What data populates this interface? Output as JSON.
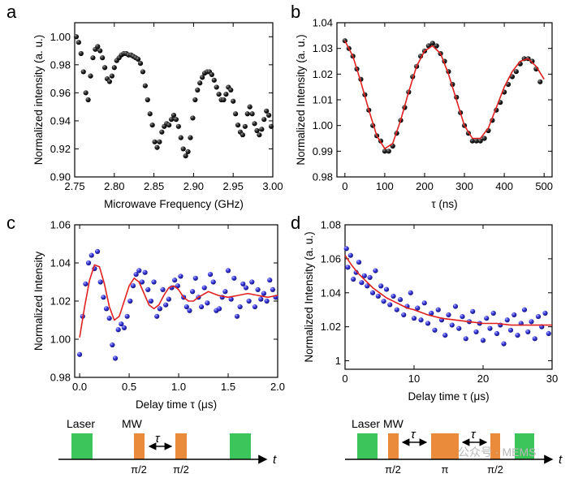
{
  "figure": {
    "watermark": "公众号 · MEMS",
    "panels": [
      "a",
      "b",
      "c",
      "d"
    ]
  },
  "colors": {
    "black_dot": "#1a1a1a",
    "blue_dot": "#2a2ad8",
    "fit": "#e02020",
    "laser": "#3cc55a",
    "mw": "#e98b3a"
  },
  "chart_data": [
    {
      "type": "scatter",
      "panel": "a",
      "title": "",
      "xlabel": "Microwave Frequency (GHz)",
      "ylabel": "Normalized intensity (a. u.)",
      "xlim": [
        2.75,
        3.0
      ],
      "ylim": [
        0.9,
        1.01
      ],
      "xticks": [
        "2.75",
        "2.80",
        "2.85",
        "2.90",
        "2.95",
        "3.00"
      ],
      "xtick_values": [
        2.75,
        2.8,
        2.85,
        2.9,
        2.95,
        3.0
      ],
      "yticks": [
        "0.90",
        "0.92",
        "0.94",
        "0.96",
        "0.98",
        "1.00"
      ],
      "ytick_values": [
        0.9,
        0.92,
        0.94,
        0.96,
        0.98,
        1.0
      ],
      "series": [
        {
          "name": "data",
          "marker": "black",
          "x": [
            2.752,
            2.755,
            2.758,
            2.761,
            2.764,
            2.767,
            2.77,
            2.773,
            2.776,
            2.779,
            2.782,
            2.785,
            2.788,
            2.791,
            2.794,
            2.797,
            2.8,
            2.803,
            2.806,
            2.809,
            2.812,
            2.815,
            2.818,
            2.821,
            2.824,
            2.827,
            2.83,
            2.833,
            2.836,
            2.839,
            2.842,
            2.845,
            2.848,
            2.851,
            2.854,
            2.857,
            2.86,
            2.863,
            2.866,
            2.869,
            2.872,
            2.875,
            2.878,
            2.881,
            2.884,
            2.887,
            2.89,
            2.893,
            2.896,
            2.899,
            2.902,
            2.905,
            2.908,
            2.911,
            2.914,
            2.917,
            2.92,
            2.923,
            2.926,
            2.929,
            2.932,
            2.935,
            2.938,
            2.941,
            2.944,
            2.947,
            2.95,
            2.953,
            2.956,
            2.959,
            2.962,
            2.965,
            2.968,
            2.971,
            2.974,
            2.977,
            2.98,
            2.983,
            2.986,
            2.989,
            2.992,
            2.995,
            2.998
          ],
          "y": [
            1.0,
            0.996,
            0.988,
            0.975,
            0.96,
            0.955,
            0.972,
            0.985,
            0.991,
            0.993,
            0.99,
            0.985,
            0.978,
            0.97,
            0.968,
            0.972,
            0.978,
            0.983,
            0.985,
            0.987,
            0.988,
            0.988,
            0.987,
            0.987,
            0.986,
            0.985,
            0.984,
            0.981,
            0.975,
            0.965,
            0.955,
            0.945,
            0.937,
            0.925,
            0.921,
            0.925,
            0.932,
            0.936,
            0.938,
            0.937,
            0.941,
            0.944,
            0.941,
            0.936,
            0.928,
            0.92,
            0.915,
            0.918,
            0.928,
            0.942,
            0.955,
            0.962,
            0.967,
            0.971,
            0.974,
            0.975,
            0.975,
            0.973,
            0.969,
            0.964,
            0.959,
            0.955,
            0.955,
            0.959,
            0.964,
            0.962,
            0.954,
            0.945,
            0.937,
            0.932,
            0.93,
            0.936,
            0.945,
            0.95,
            0.945,
            0.938,
            0.933,
            0.93,
            0.934,
            0.941,
            0.947,
            0.944,
            0.936
          ]
        }
      ]
    },
    {
      "type": "scatter",
      "panel": "b",
      "title": "",
      "xlabel": "τ (ns)",
      "ylabel": "Normalized Intensity (a. u.)",
      "xlim": [
        -20,
        520
      ],
      "ylim": [
        0.98,
        1.04
      ],
      "xticks": [
        "0",
        "100",
        "200",
        "300",
        "400",
        "500"
      ],
      "xtick_values": [
        0,
        100,
        200,
        300,
        400,
        500
      ],
      "yticks": [
        "0.98",
        "0.99",
        "1.00",
        "1.01",
        "1.02",
        "1.03",
        "1.04"
      ],
      "ytick_values": [
        0.98,
        0.99,
        1.0,
        1.01,
        1.02,
        1.03,
        1.04
      ],
      "series": [
        {
          "name": "data",
          "marker": "black",
          "x": [
            0,
            10,
            20,
            30,
            40,
            50,
            60,
            70,
            80,
            90,
            100,
            110,
            120,
            130,
            140,
            150,
            160,
            170,
            180,
            190,
            200,
            210,
            220,
            230,
            240,
            250,
            260,
            270,
            280,
            290,
            300,
            310,
            320,
            330,
            340,
            350,
            360,
            370,
            380,
            390,
            400,
            410,
            420,
            430,
            440,
            450,
            460,
            470,
            480,
            490
          ],
          "y": [
            1.033,
            1.03,
            1.027,
            1.022,
            1.018,
            1.012,
            1.006,
            1.0,
            0.996,
            0.994,
            0.99,
            0.99,
            0.992,
            0.997,
            1.002,
            1.007,
            1.013,
            1.019,
            1.023,
            1.027,
            1.029,
            1.031,
            1.032,
            1.031,
            1.028,
            1.025,
            1.021,
            1.016,
            1.011,
            1.005,
            1.0,
            0.997,
            0.994,
            0.994,
            0.994,
            0.995,
            0.998,
            1.002,
            1.006,
            1.009,
            1.013,
            1.016,
            1.019,
            1.021,
            1.024,
            1.026,
            1.026,
            1.025,
            1.022,
            1.017
          ]
        },
        {
          "name": "fit",
          "line": "red",
          "x": [
            0,
            20,
            40,
            60,
            80,
            100,
            120,
            140,
            160,
            180,
            200,
            220,
            240,
            260,
            280,
            300,
            320,
            340,
            360,
            380,
            400,
            420,
            440,
            460,
            480,
            500
          ],
          "y": [
            1.033,
            1.027,
            1.017,
            1.006,
            0.996,
            0.991,
            0.993,
            1.002,
            1.013,
            1.023,
            1.029,
            1.031,
            1.028,
            1.02,
            1.01,
            1.0,
            0.995,
            0.995,
            0.999,
            1.007,
            1.015,
            1.021,
            1.025,
            1.026,
            1.023,
            1.018
          ]
        }
      ]
    },
    {
      "type": "scatter",
      "panel": "c",
      "title": "",
      "xlabel": "Delay time τ (μs)",
      "ylabel": "Normalized Intensity",
      "xlim": [
        -0.05,
        2.0
      ],
      "ylim": [
        0.98,
        1.06
      ],
      "xticks": [
        "0.0",
        "0.5",
        "1.0",
        "1.5",
        "2.0"
      ],
      "xtick_values": [
        0.0,
        0.5,
        1.0,
        1.5,
        2.0
      ],
      "yticks": [
        "0.98",
        "1.00",
        "1.02",
        "1.04",
        "1.06"
      ],
      "ytick_values": [
        0.98,
        1.0,
        1.02,
        1.04,
        1.06
      ],
      "series": [
        {
          "name": "data",
          "marker": "blue",
          "x": [
            0.0,
            0.03,
            0.06,
            0.09,
            0.12,
            0.15,
            0.18,
            0.21,
            0.24,
            0.27,
            0.3,
            0.33,
            0.36,
            0.39,
            0.42,
            0.45,
            0.48,
            0.51,
            0.54,
            0.57,
            0.6,
            0.63,
            0.66,
            0.69,
            0.72,
            0.75,
            0.78,
            0.81,
            0.84,
            0.87,
            0.9,
            0.93,
            0.96,
            0.99,
            1.02,
            1.05,
            1.08,
            1.11,
            1.14,
            1.17,
            1.2,
            1.23,
            1.26,
            1.29,
            1.32,
            1.35,
            1.38,
            1.41,
            1.44,
            1.47,
            1.5,
            1.53,
            1.56,
            1.59,
            1.62,
            1.65,
            1.68,
            1.71,
            1.74,
            1.77,
            1.8,
            1.83,
            1.86,
            1.89,
            1.92,
            1.95,
            1.98
          ],
          "y": [
            0.992,
            1.012,
            1.029,
            1.04,
            1.044,
            1.037,
            1.046,
            1.03,
            1.022,
            1.016,
            1.011,
            0.997,
            0.99,
            1.005,
            1.008,
            1.006,
            1.012,
            1.02,
            1.028,
            1.034,
            1.036,
            1.03,
            1.035,
            1.026,
            1.02,
            1.03,
            1.012,
            1.016,
            1.026,
            1.018,
            1.021,
            1.027,
            1.031,
            1.028,
            1.033,
            1.022,
            1.017,
            1.015,
            1.025,
            1.032,
            1.022,
            1.017,
            1.027,
            1.019,
            1.034,
            1.03,
            1.015,
            1.016,
            1.022,
            1.025,
            1.036,
            1.021,
            1.032,
            1.012,
            1.017,
            1.029,
            1.027,
            1.02,
            1.03,
            1.017,
            1.026,
            1.021,
            1.024,
            1.02,
            1.031,
            1.026,
            1.022
          ]
        },
        {
          "name": "fit",
          "line": "red",
          "x": [
            0.0,
            0.05,
            0.1,
            0.15,
            0.2,
            0.25,
            0.3,
            0.35,
            0.4,
            0.45,
            0.5,
            0.55,
            0.6,
            0.65,
            0.7,
            0.75,
            0.8,
            0.85,
            0.9,
            0.95,
            1.0,
            1.05,
            1.1,
            1.15,
            1.2,
            1.3,
            1.4,
            1.5,
            1.6,
            1.7,
            1.8,
            1.9,
            2.0
          ],
          "y": [
            1.001,
            1.017,
            1.031,
            1.039,
            1.038,
            1.029,
            1.017,
            1.01,
            1.012,
            1.02,
            1.028,
            1.032,
            1.03,
            1.024,
            1.018,
            1.016,
            1.018,
            1.023,
            1.027,
            1.028,
            1.026,
            1.022,
            1.02,
            1.02,
            1.022,
            1.025,
            1.023,
            1.022,
            1.023,
            1.024,
            1.023,
            1.022,
            1.023
          ]
        }
      ]
    },
    {
      "type": "scatter",
      "panel": "d",
      "title": "",
      "xlabel": "Delay time τ (μs)",
      "ylabel": "Normalized Intensity (a. u.)",
      "xlim": [
        0,
        30
      ],
      "ylim": [
        0.995,
        1.08
      ],
      "xticks": [
        "0",
        "10",
        "20",
        "30"
      ],
      "xtick_values": [
        0,
        10,
        20,
        30
      ],
      "yticks": [
        "1",
        "1.02",
        "1.04",
        "1.06",
        "1.08"
      ],
      "ytick_values": [
        1.0,
        1.02,
        1.04,
        1.06,
        1.08
      ],
      "series": [
        {
          "name": "data",
          "marker": "blue",
          "x": [
            0.2,
            0.4,
            0.8,
            1.2,
            1.6,
            2.0,
            2.4,
            2.8,
            3.2,
            3.6,
            4.0,
            4.4,
            4.8,
            5.2,
            5.6,
            6.0,
            6.5,
            7.0,
            7.5,
            8.0,
            8.5,
            9.0,
            9.5,
            10.0,
            10.5,
            11.0,
            11.5,
            12.0,
            12.5,
            13.0,
            13.5,
            14.0,
            14.5,
            15.0,
            15.5,
            16.0,
            16.5,
            17.0,
            17.5,
            18.0,
            18.5,
            19.0,
            19.5,
            20.0,
            20.5,
            21.0,
            21.5,
            22.0,
            22.5,
            23.0,
            23.5,
            24.0,
            24.5,
            25.0,
            25.5,
            26.0,
            26.5,
            27.0,
            27.5,
            28.0,
            28.5,
            29.0,
            29.5
          ],
          "y": [
            1.066,
            1.055,
            1.062,
            1.048,
            1.052,
            1.058,
            1.046,
            1.05,
            1.044,
            1.049,
            1.04,
            1.053,
            1.038,
            1.044,
            1.035,
            1.042,
            1.033,
            1.038,
            1.03,
            1.036,
            1.027,
            1.032,
            1.04,
            1.025,
            1.031,
            1.024,
            1.034,
            1.022,
            1.028,
            1.018,
            1.03,
            1.024,
            1.015,
            1.027,
            1.021,
            1.032,
            1.019,
            1.026,
            1.013,
            1.023,
            1.029,
            1.017,
            1.022,
            1.012,
            1.025,
            1.019,
            1.028,
            1.016,
            1.021,
            1.01,
            1.024,
            1.018,
            1.027,
            1.015,
            1.022,
            1.03,
            1.017,
            1.023,
            1.013,
            1.026,
            1.02,
            1.028,
            1.016
          ]
        },
        {
          "name": "fit",
          "line": "red",
          "x": [
            0,
            1,
            2,
            3,
            4,
            5,
            6,
            7,
            8,
            9,
            10,
            12,
            14,
            16,
            18,
            20,
            22,
            24,
            26,
            28,
            30
          ],
          "y": [
            1.062,
            1.056,
            1.051,
            1.047,
            1.043,
            1.04,
            1.037,
            1.035,
            1.033,
            1.031,
            1.03,
            1.027,
            1.025,
            1.024,
            1.023,
            1.022,
            1.022,
            1.021,
            1.021,
            1.021,
            1.021
          ]
        }
      ]
    }
  ],
  "sequences": {
    "c": {
      "laser_label": "Laser",
      "mw_label": "MW",
      "tau_label": "τ",
      "pulse_labels": [
        "π/2",
        "π/2"
      ],
      "axis_label": "t"
    },
    "d": {
      "laser_label": "Laser",
      "mw_label": "MW",
      "tau_label": "τ",
      "pulse_labels": [
        "π/2",
        "π",
        "π/2"
      ],
      "axis_label": "t"
    }
  }
}
